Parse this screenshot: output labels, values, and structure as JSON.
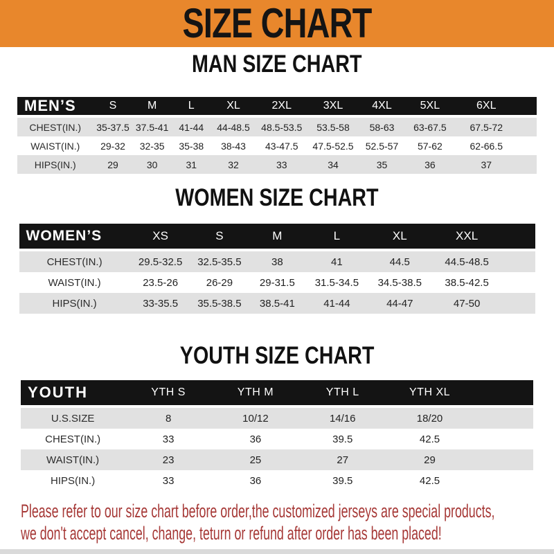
{
  "banner": {
    "title": "SIZE CHART"
  },
  "colors": {
    "banner_bg": "#E8872C",
    "bar_bg": "#141414",
    "row_alt": "#E1E1E1",
    "footer_text": "#A63836",
    "bottom_strip": "#DADADA"
  },
  "sections": [
    {
      "id": "men",
      "title": "MAN SIZE CHART",
      "header_label": "MEN’S",
      "columns": [
        "S",
        "M",
        "L",
        "XL",
        "2XL",
        "3XL",
        "4XL",
        "5XL",
        "6XL"
      ],
      "rows": [
        {
          "label": "CHEST(IN.)",
          "values": [
            "35-37.5",
            "37.5-41",
            "41-44",
            "44-48.5",
            "48.5-53.5",
            "53.5-58",
            "58-63",
            "63-67.5",
            "67.5-72"
          ]
        },
        {
          "label": "WAIST(IN.)",
          "values": [
            "29-32",
            "32-35",
            "35-38",
            "38-43",
            "43-47.5",
            "47.5-52.5",
            "52.5-57",
            "57-62",
            "62-66.5"
          ]
        },
        {
          "label": "HIPS(IN.)",
          "values": [
            "29",
            "30",
            "31",
            "32",
            "33",
            "34",
            "35",
            "36",
            "37"
          ]
        }
      ]
    },
    {
      "id": "women",
      "title": "WOMEN SIZE CHART",
      "header_label": "WOMEN’S",
      "columns": [
        "XS",
        "S",
        "M",
        "L",
        "XL",
        "XXL"
      ],
      "rows": [
        {
          "label": "CHEST(IN.)",
          "values": [
            "29.5-32.5",
            "32.5-35.5",
            "38",
            "41",
            "44.5",
            "44.5-48.5"
          ]
        },
        {
          "label": "WAIST(IN.)",
          "values": [
            "23.5-26",
            "26-29",
            "29-31.5",
            "31.5-34.5",
            "34.5-38.5",
            "38.5-42.5"
          ]
        },
        {
          "label": "HIPS(IN.)",
          "values": [
            "33-35.5",
            "35.5-38.5",
            "38.5-41",
            "41-44",
            "44-47",
            "47-50"
          ]
        }
      ]
    },
    {
      "id": "youth",
      "title": "YOUTH SIZE CHART",
      "header_label": "YOUTH",
      "columns": [
        "YTH S",
        "YTH M",
        "YTH L",
        "YTH XL"
      ],
      "rows": [
        {
          "label": "U.S.SIZE",
          "values": [
            "8",
            "10/12",
            "14/16",
            "18/20"
          ]
        },
        {
          "label": "CHEST(IN.)",
          "values": [
            "33",
            "36",
            "39.5",
            "42.5"
          ]
        },
        {
          "label": "WAIST(IN.)",
          "values": [
            "23",
            "25",
            "27",
            "29"
          ]
        },
        {
          "label": "HIPS(IN.)",
          "values": [
            "33",
            "36",
            "39.5",
            "42.5"
          ]
        }
      ]
    }
  ],
  "footer": {
    "lines": [
      "Please refer to our size chart before order,the customized jerseys are special products,",
      "we don't accept cancel, change, teturn or refund after order has been placed!"
    ]
  }
}
